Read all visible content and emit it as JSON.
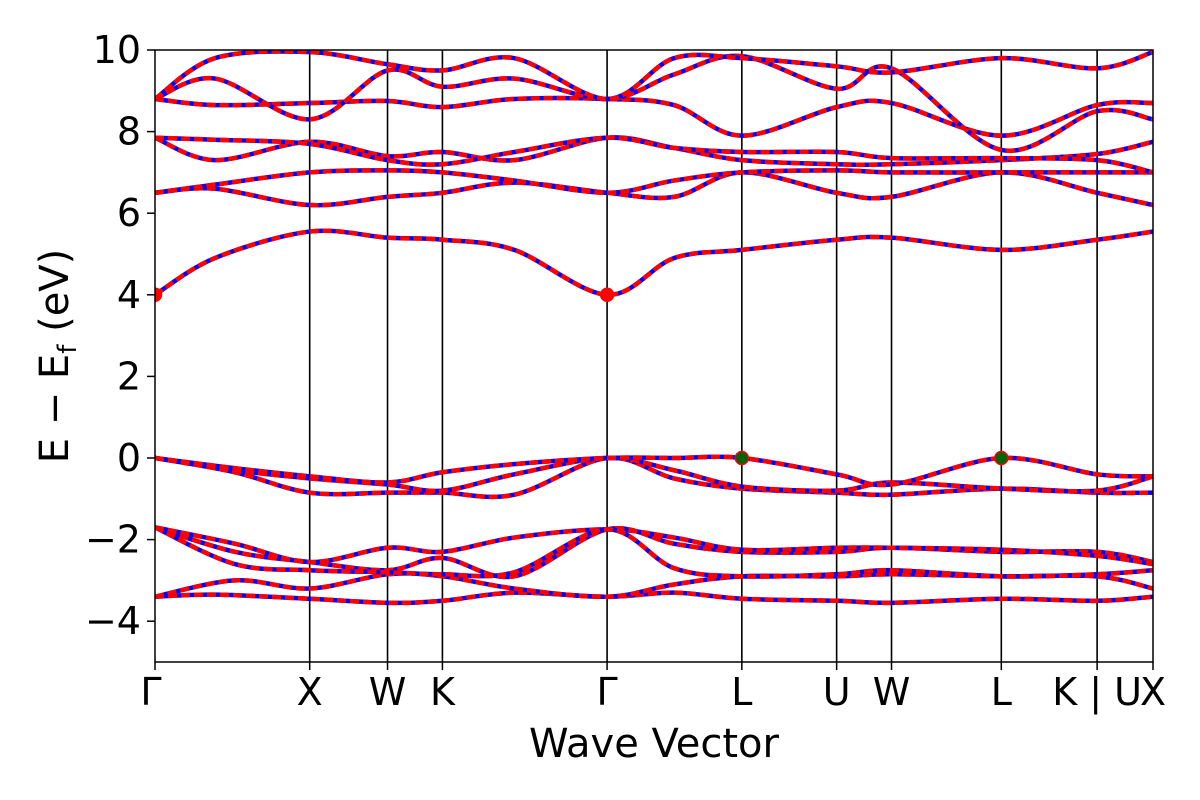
{
  "chart_data": {
    "type": "line",
    "xlabel": "Wave Vector",
    "ylabel": "E − E",
    "ylabel_sub": "f",
    "ylabel_unit": " (eV)",
    "ylim": [
      -5,
      10
    ],
    "yticks": [
      -4,
      -2,
      0,
      2,
      4,
      6,
      8,
      10
    ],
    "ytick_labels": [
      "−4",
      "−2",
      "0",
      "2",
      "4",
      "6",
      "8",
      "10"
    ],
    "xlim": [
      0,
      1000
    ],
    "kpoints": [
      {
        "label": "Γ",
        "x": 0
      },
      {
        "label": "X",
        "x": 155
      },
      {
        "label": "W",
        "x": 233
      },
      {
        "label": "K",
        "x": 288
      },
      {
        "label": "Γ",
        "x": 453
      },
      {
        "label": "L",
        "x": 588
      },
      {
        "label": "U",
        "x": 683
      },
      {
        "label": "W",
        "x": 738
      },
      {
        "label": "L",
        "x": 848
      },
      {
        "label": "K | U",
        "x": 944
      },
      {
        "label": "X",
        "x": 1000
      }
    ],
    "grid": false,
    "legend": "none",
    "colors": {
      "band": "#ff0000",
      "band_overlay": "#0000ff",
      "cbm": "#ff0000",
      "vbm": "#006400"
    },
    "bands": [
      {
        "x": [
          0,
          60,
          155,
          233,
          288,
          360,
          453,
          520,
          588,
          683,
          738,
          848,
          944,
          1000
        ],
        "y": [
          -3.4,
          -3.35,
          -3.45,
          -3.55,
          -3.5,
          -3.3,
          -3.4,
          -3.3,
          -3.45,
          -3.5,
          -3.55,
          -3.45,
          -3.5,
          -3.4
        ]
      },
      {
        "x": [
          0,
          80,
          155,
          233,
          288,
          360,
          453,
          520,
          588,
          683,
          738,
          848,
          944,
          1000
        ],
        "y": [
          -3.4,
          -3.0,
          -3.2,
          -2.85,
          -2.9,
          -3.2,
          -3.4,
          -3.1,
          -2.9,
          -2.9,
          -2.85,
          -2.9,
          -2.9,
          -3.2
        ]
      },
      {
        "x": [
          0,
          80,
          155,
          233,
          288,
          360,
          453,
          520,
          588,
          683,
          738,
          848,
          944,
          1000
        ],
        "y": [
          -1.7,
          -2.3,
          -2.55,
          -2.75,
          -2.45,
          -2.9,
          -1.75,
          -2.1,
          -2.3,
          -2.3,
          -2.2,
          -2.3,
          -2.3,
          -2.55
        ]
      },
      {
        "x": [
          0,
          80,
          155,
          233,
          288,
          360,
          453,
          520,
          588,
          683,
          738,
          848,
          944,
          1000
        ],
        "y": [
          -1.7,
          -2.1,
          -2.55,
          -2.2,
          -2.3,
          -1.95,
          -1.75,
          -1.95,
          -2.25,
          -2.2,
          -2.2,
          -2.25,
          -2.4,
          -2.6
        ]
      },
      {
        "x": [
          0,
          80,
          155,
          233,
          288,
          360,
          453,
          520,
          588,
          683,
          738,
          848,
          944,
          1000
        ],
        "y": [
          -1.7,
          -2.6,
          -2.75,
          -2.8,
          -2.85,
          -2.8,
          -1.75,
          -2.7,
          -2.9,
          -2.85,
          -2.75,
          -2.9,
          -2.85,
          -2.75
        ]
      },
      {
        "x": [
          0,
          80,
          155,
          233,
          288,
          360,
          453,
          520,
          588,
          683,
          738,
          848,
          944,
          1000
        ],
        "y": [
          0.0,
          -0.35,
          -0.85,
          -0.85,
          -0.85,
          -0.9,
          0.0,
          -0.5,
          -0.75,
          -0.85,
          -0.9,
          -0.75,
          -0.85,
          -0.85
        ]
      },
      {
        "x": [
          0,
          80,
          155,
          233,
          288,
          360,
          453,
          520,
          588,
          683,
          738,
          848,
          944,
          1000
        ],
        "y": [
          0.0,
          -0.3,
          -0.5,
          -0.65,
          -0.8,
          -0.4,
          0.0,
          -0.3,
          -0.7,
          -0.8,
          -0.6,
          -0.75,
          -0.8,
          -0.45
        ]
      },
      {
        "x": [
          0,
          80,
          155,
          233,
          288,
          360,
          453,
          520,
          588,
          683,
          738,
          848,
          944,
          1000
        ],
        "y": [
          0.0,
          -0.25,
          -0.45,
          -0.6,
          -0.35,
          -0.15,
          0.0,
          0.0,
          0.0,
          -0.4,
          -0.65,
          0.0,
          -0.4,
          -0.45
        ]
      },
      {
        "x": [
          0,
          60,
          155,
          233,
          288,
          360,
          453,
          520,
          588,
          683,
          738,
          848,
          944,
          1000
        ],
        "y": [
          4.0,
          4.9,
          5.55,
          5.4,
          5.35,
          5.1,
          4.0,
          4.9,
          5.1,
          5.35,
          5.4,
          5.1,
          5.35,
          5.55
        ]
      },
      {
        "x": [
          0,
          60,
          155,
          233,
          288,
          360,
          453,
          520,
          588,
          683,
          738,
          848,
          944,
          1000
        ],
        "y": [
          6.5,
          6.6,
          6.2,
          6.4,
          6.5,
          6.75,
          6.5,
          6.4,
          7.0,
          6.5,
          6.4,
          7.0,
          6.5,
          6.2
        ]
      },
      {
        "x": [
          0,
          60,
          155,
          233,
          288,
          360,
          453,
          520,
          588,
          683,
          738,
          848,
          944,
          1000
        ],
        "y": [
          6.5,
          6.7,
          7.0,
          7.05,
          7.0,
          6.8,
          6.5,
          6.8,
          7.0,
          7.05,
          7.0,
          7.0,
          7.0,
          7.0
        ]
      },
      {
        "x": [
          0,
          60,
          155,
          233,
          288,
          360,
          453,
          520,
          588,
          683,
          738,
          848,
          944,
          1000
        ],
        "y": [
          7.85,
          7.3,
          7.75,
          7.4,
          7.5,
          7.3,
          7.85,
          7.6,
          7.3,
          7.2,
          7.2,
          7.3,
          7.45,
          7.75
        ]
      },
      {
        "x": [
          0,
          60,
          155,
          233,
          288,
          360,
          453,
          520,
          588,
          683,
          738,
          848,
          944,
          1000
        ],
        "y": [
          7.85,
          7.8,
          7.7,
          7.3,
          7.2,
          7.5,
          7.85,
          7.6,
          7.5,
          7.5,
          7.35,
          7.35,
          7.3,
          7.0
        ]
      },
      {
        "x": [
          0,
          60,
          155,
          233,
          288,
          360,
          453,
          520,
          588,
          683,
          738,
          848,
          944,
          1000
        ],
        "y": [
          8.8,
          8.65,
          8.7,
          8.75,
          8.6,
          8.8,
          8.8,
          8.65,
          7.9,
          8.6,
          8.7,
          7.9,
          8.65,
          8.7
        ]
      },
      {
        "x": [
          0,
          60,
          155,
          233,
          288,
          360,
          453,
          520,
          588,
          683,
          738,
          848,
          944,
          1000
        ],
        "y": [
          8.8,
          9.3,
          8.3,
          9.5,
          9.1,
          9.3,
          8.8,
          9.4,
          9.85,
          9.05,
          9.55,
          7.55,
          8.5,
          8.3
        ]
      },
      {
        "x": [
          0,
          60,
          155,
          233,
          288,
          360,
          453,
          520,
          588,
          683,
          738,
          848,
          944,
          1000
        ],
        "y": [
          8.8,
          9.8,
          9.95,
          9.65,
          9.5,
          9.8,
          8.8,
          9.8,
          9.8,
          9.6,
          9.45,
          9.8,
          9.55,
          9.95
        ]
      }
    ],
    "markers": [
      {
        "x": 0,
        "y": 4.0,
        "kind": "cbm"
      },
      {
        "x": 453,
        "y": 4.0,
        "kind": "cbm"
      },
      {
        "x": 588,
        "y": 0.0,
        "kind": "vbm"
      },
      {
        "x": 848,
        "y": 0.0,
        "kind": "vbm"
      }
    ]
  }
}
